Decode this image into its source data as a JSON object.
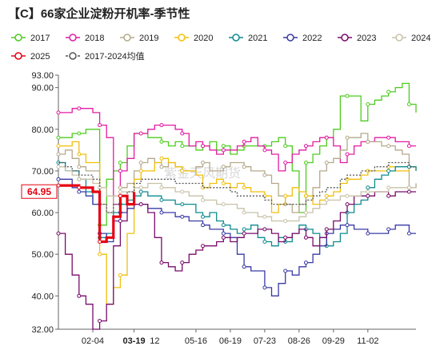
{
  "chart_data": {
    "type": "line",
    "title": "【C】66家企业淀粉开机率-季节性",
    "watermark": "紫金天风期货",
    "ylim": [
      32,
      93
    ],
    "y_ticks": [
      "93.00",
      "90.00",
      "80.00",
      "70.00",
      "60.00",
      "50.00",
      "40.00",
      "32.00"
    ],
    "y_tick_values": [
      93,
      90,
      80,
      70,
      60,
      50,
      40,
      32
    ],
    "x_tick_labels": [
      "02-04",
      "03-19",
      "05-16",
      "06-19",
      "07-23",
      "08-26",
      "09-29",
      "11-02"
    ],
    "x_tick_weeks": [
      5,
      11,
      20,
      25,
      30,
      35,
      40,
      45
    ],
    "x_partial_label": "12",
    "x_partial_week": 14,
    "weeks_total": 53,
    "current_value_label": "64.95",
    "highlight_color": "#e60012",
    "legend": [
      {
        "name": "2017",
        "color": "#4dcc1e",
        "dashed": false
      },
      {
        "name": "2018",
        "color": "#e21ba3",
        "dashed": false
      },
      {
        "name": "2019",
        "color": "#b5a98a",
        "dashed": false
      },
      {
        "name": "2020",
        "color": "#f2bf0a",
        "dashed": false
      },
      {
        "name": "2021",
        "color": "#0f8a8f",
        "dashed": false
      },
      {
        "name": "2022",
        "color": "#3a3aa6",
        "dashed": false
      },
      {
        "name": "2023",
        "color": "#7a0b6b",
        "dashed": false
      },
      {
        "name": "2024",
        "color": "#c8c2a8",
        "dashed": false
      },
      {
        "name": "2025",
        "color": "#e60012",
        "dashed": false
      },
      {
        "name": "2017-2024均值",
        "color": "#555555",
        "dashed": true
      }
    ],
    "series": [
      {
        "name": "2017",
        "color": "#4dcc1e",
        "width": 1.3,
        "values": [
          78,
          78,
          79,
          79,
          80,
          80,
          57,
          68,
          70,
          72,
          76,
          79,
          79,
          78,
          78,
          77,
          76,
          77,
          76,
          76,
          75,
          76,
          77,
          75,
          76,
          74,
          75,
          76,
          76,
          76,
          76,
          77,
          78,
          76,
          70,
          60,
          72,
          74,
          76,
          78,
          80,
          88,
          88,
          88,
          82,
          86,
          87,
          88,
          89,
          90,
          91,
          86,
          84
        ]
      },
      {
        "name": "2018",
        "color": "#e21ba3",
        "width": 1.3,
        "values": [
          84,
          84,
          85,
          85,
          85,
          84,
          81,
          78,
          62,
          70,
          73,
          79,
          79,
          80,
          81,
          81,
          81,
          80,
          79,
          76,
          77,
          76,
          75,
          74,
          75,
          75,
          76,
          77,
          78,
          76,
          75,
          74,
          70,
          72,
          74,
          75,
          76,
          77,
          78,
          78,
          76,
          72,
          74,
          76,
          77,
          77,
          78,
          78,
          78,
          77,
          77,
          76,
          76
        ]
      },
      {
        "name": "2019",
        "color": "#b5a98a",
        "width": 1.3,
        "values": [
          74,
          75,
          73,
          71,
          70,
          70,
          62,
          60,
          64,
          66,
          67,
          70,
          72,
          73,
          72,
          71,
          72,
          71,
          70,
          70,
          71,
          72,
          70,
          70,
          71,
          72,
          72,
          71,
          70,
          70,
          69,
          67,
          64,
          62,
          60,
          62,
          64,
          66,
          70,
          72,
          73,
          75,
          78,
          78,
          79,
          77,
          77,
          76,
          76,
          75,
          74,
          66,
          67
        ]
      },
      {
        "name": "2020",
        "color": "#f2bf0a",
        "width": 1.3,
        "values": [
          76,
          76,
          77,
          74,
          72,
          72,
          50,
          38,
          42,
          45,
          55,
          68,
          70,
          70,
          72,
          73,
          72,
          71,
          70,
          70,
          69,
          66,
          67,
          68,
          67,
          66,
          67,
          66,
          65,
          65,
          64,
          60,
          62,
          64,
          66,
          65,
          64,
          62,
          63,
          64,
          65,
          67,
          68,
          68,
          69,
          70,
          70,
          70,
          71,
          70,
          70,
          71,
          70
        ]
      },
      {
        "name": "2021",
        "color": "#0f8a8f",
        "width": 1.3,
        "values": [
          72,
          70,
          70,
          68,
          65,
          62,
          54,
          55,
          60,
          62,
          63,
          64,
          65,
          64,
          64,
          63,
          63,
          62,
          62,
          62,
          60,
          59,
          60,
          58,
          57,
          56,
          55,
          56,
          57,
          54,
          53,
          52,
          54,
          53,
          55,
          57,
          56,
          55,
          54,
          52,
          53,
          55,
          60,
          62,
          63,
          66,
          68,
          69,
          70,
          71,
          71,
          71,
          70
        ]
      },
      {
        "name": "2022",
        "color": "#3a3aa6",
        "width": 1.3,
        "values": [
          68,
          68,
          66,
          65,
          64,
          62,
          55,
          53,
          58,
          60,
          61,
          62,
          62,
          61,
          61,
          60,
          60,
          59,
          59,
          58,
          58,
          57,
          56,
          56,
          55,
          54,
          50,
          47,
          46,
          46,
          42,
          40,
          43,
          46,
          45,
          47,
          48,
          50,
          52,
          55,
          56,
          57,
          57,
          56,
          56,
          55,
          55,
          55,
          56,
          57,
          57,
          55,
          55
        ]
      },
      {
        "name": "2023",
        "color": "#7a0b6b",
        "width": 1.3,
        "values": [
          55,
          50,
          45,
          40,
          38,
          32,
          34,
          38,
          52,
          58,
          62,
          62,
          62,
          60,
          54,
          48,
          47,
          46,
          48,
          50,
          51,
          52,
          52,
          53,
          54,
          53,
          54,
          55,
          55,
          56,
          56,
          55,
          53,
          54,
          55,
          56,
          54,
          52,
          54,
          56,
          58,
          60,
          62,
          64,
          64,
          64,
          65,
          65,
          64,
          65,
          65,
          65,
          65
        ]
      },
      {
        "name": "2024",
        "color": "#c8c2a8",
        "width": 1.3,
        "values": [
          71,
          70,
          69,
          68,
          68,
          67,
          66,
          64,
          64,
          65,
          65,
          66,
          66,
          67,
          67,
          66,
          66,
          65,
          65,
          64,
          64,
          63,
          63,
          62,
          62,
          62,
          61,
          60,
          60,
          59,
          59,
          58,
          58,
          58,
          58,
          59,
          60,
          61,
          62,
          63,
          63,
          64,
          64,
          64,
          65,
          65,
          65,
          65,
          66,
          66,
          66,
          66,
          66
        ]
      },
      {
        "name": "2017-2024均值",
        "color": "#555555",
        "width": 1.3,
        "dashed": true,
        "values": [
          72,
          71,
          70,
          69,
          69,
          68,
          62,
          60,
          62,
          64,
          65,
          67,
          68,
          68,
          68,
          68,
          68,
          67,
          67,
          67,
          67,
          66,
          66,
          66,
          66,
          65,
          64,
          64,
          64,
          64,
          63,
          62,
          62,
          62,
          62,
          62,
          63,
          64,
          65,
          66,
          66,
          68,
          69,
          69,
          70,
          70,
          71,
          71,
          72,
          72,
          72,
          71,
          71
        ]
      },
      {
        "name": "2025",
        "color": "#e60012",
        "width": 3.2,
        "values": [
          66.5,
          66.5,
          66.5,
          66,
          66,
          65,
          53,
          54,
          59,
          64,
          62,
          64.95
        ]
      }
    ]
  }
}
